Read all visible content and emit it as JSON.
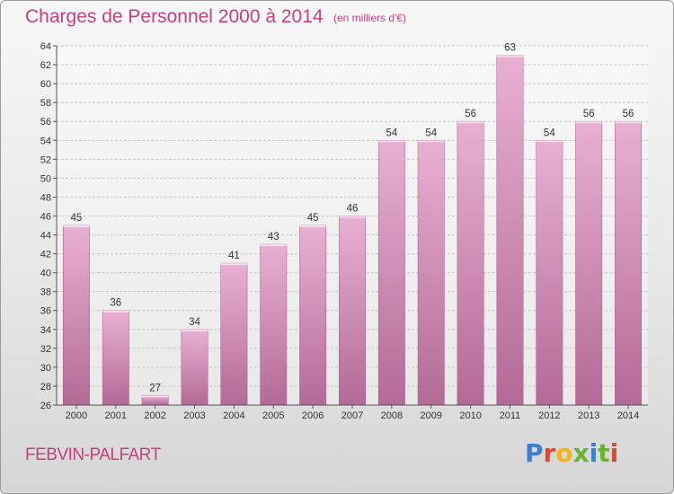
{
  "header": {
    "title": "Charges de Personnel 2000 à 2014",
    "subtitle": "(en milliers d'€)"
  },
  "footer": {
    "commune": "FEBVIN-PALFART",
    "logo": "Proxiti",
    "logo_colors": [
      "#3a7fd5",
      "#e8442e",
      "#f2b31b",
      "#69b42c",
      "#3a7fd5",
      "#69b42c",
      "#e8442e"
    ]
  },
  "colors": {
    "accent": "#c4417e",
    "bar_top": "#e9b0d3",
    "bar_bottom": "#b36a96",
    "grid": "#c8c8c8"
  },
  "chart_data": {
    "type": "bar",
    "title": "Charges de Personnel 2000 à 2014",
    "subtitle": "(en milliers d'€)",
    "categories": [
      "2000",
      "2001",
      "2002",
      "2003",
      "2004",
      "2005",
      "2006",
      "2007",
      "2008",
      "2009",
      "2010",
      "2011",
      "2012",
      "2013",
      "2014"
    ],
    "values": [
      45,
      36,
      27,
      34,
      41,
      43,
      45,
      46,
      54,
      54,
      56,
      63,
      54,
      56,
      56
    ],
    "ylim": [
      26,
      64
    ],
    "yticks": [
      26,
      28,
      30,
      32,
      34,
      36,
      38,
      40,
      42,
      44,
      46,
      48,
      50,
      52,
      54,
      56,
      58,
      60,
      62,
      64
    ],
    "grid": true,
    "data_labels": true
  }
}
